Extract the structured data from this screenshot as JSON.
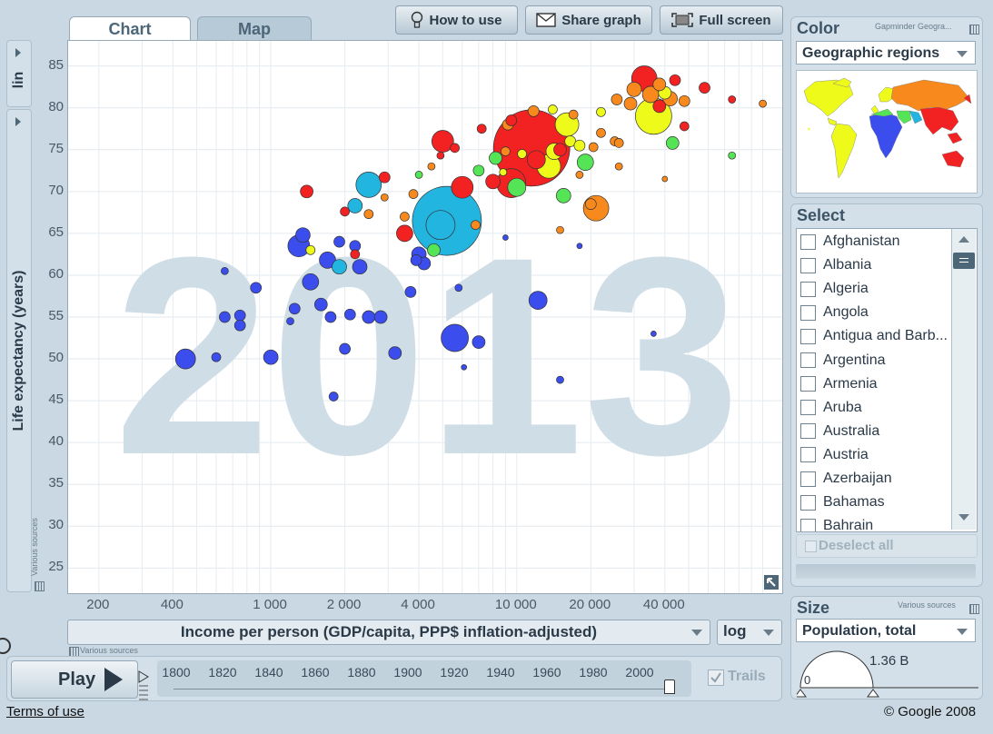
{
  "tabs": {
    "chart": "Chart",
    "map": "Map"
  },
  "toolbar": {
    "how_to_use": "How to use",
    "share_graph": "Share graph",
    "full_screen": "Full screen"
  },
  "y_axis": {
    "label": "Life expectancy (years)",
    "scale": "lin",
    "ticks": [
      "85",
      "80",
      "75",
      "70",
      "65",
      "60",
      "55",
      "50",
      "45",
      "40",
      "35",
      "30",
      "25"
    ],
    "sources": "Various sources"
  },
  "x_axis": {
    "label": "Income per person (GDP/capita, PPP$ inflation-adjusted)",
    "scale": "log",
    "ticks": [
      "200",
      "400",
      "1 000",
      "2 000",
      "4 000",
      "10 000",
      "20 000",
      "40 000"
    ],
    "sources": "Various sources"
  },
  "year_watermark": "2013",
  "color_panel": {
    "title": "Color",
    "source": "Gapminder Geogra...",
    "selected": "Geographic regions"
  },
  "select_panel": {
    "title": "Select",
    "countries": [
      "Afghanistan",
      "Albania",
      "Algeria",
      "Angola",
      "Antigua and Barb...",
      "Argentina",
      "Armenia",
      "Aruba",
      "Australia",
      "Austria",
      "Azerbaijan",
      "Bahamas",
      "Bahrain"
    ],
    "deselect_all": "Deselect all"
  },
  "size_panel": {
    "title": "Size",
    "source": "Various sources",
    "selected": "Population, total",
    "max_label": "1.36 B",
    "min_label": "0"
  },
  "playback": {
    "play": "Play",
    "years": [
      "1800",
      "1820",
      "1840",
      "1860",
      "1880",
      "1900",
      "1920",
      "1940",
      "1960",
      "1980",
      "2000"
    ],
    "trails": "Trails",
    "trails_checked": true,
    "current_year": 2013
  },
  "footer": {
    "terms": "Terms of use",
    "copyright": "© Google 2008"
  },
  "colors": {
    "red": "#f22222",
    "blue": "#3c4dee",
    "cyan": "#22b5e0",
    "yellow": "#eefb1a",
    "orange": "#f8891c",
    "green": "#55e455"
  },
  "chart_data": {
    "type": "scatter",
    "title": "",
    "xlabel": "Income per person (GDP/capita, PPP$ inflation-adjusted)",
    "ylabel": "Life expectancy (years)",
    "xscale": "log",
    "xlim": [
      150,
      120000
    ],
    "ylim": [
      22,
      88
    ],
    "points": [
      {
        "x": 5200,
        "y": 66.5,
        "r": 38,
        "c": "cyan"
      },
      {
        "x": 11500,
        "y": 75.2,
        "r": 42,
        "c": "red"
      },
      {
        "x": 4900,
        "y": 66,
        "r": 16,
        "c": "cyan"
      },
      {
        "x": 2500,
        "y": 70.8,
        "r": 14,
        "c": "cyan"
      },
      {
        "x": 5000,
        "y": 76,
        "r": 12,
        "c": "red"
      },
      {
        "x": 6000,
        "y": 70.5,
        "r": 12,
        "c": "red"
      },
      {
        "x": 9500,
        "y": 71,
        "r": 16,
        "c": "red"
      },
      {
        "x": 13500,
        "y": 73,
        "r": 13,
        "c": "yellow"
      },
      {
        "x": 16000,
        "y": 78,
        "r": 13,
        "c": "yellow"
      },
      {
        "x": 36000,
        "y": 79,
        "r": 20,
        "c": "yellow"
      },
      {
        "x": 33000,
        "y": 83.5,
        "r": 14,
        "c": "red"
      },
      {
        "x": 21000,
        "y": 68,
        "r": 14,
        "c": "orange"
      },
      {
        "x": 1300,
        "y": 63.5,
        "r": 12,
        "c": "blue"
      },
      {
        "x": 5600,
        "y": 52.5,
        "r": 15,
        "c": "blue"
      },
      {
        "x": 12200,
        "y": 57,
        "r": 10,
        "c": "blue"
      },
      {
        "x": 450,
        "y": 50,
        "r": 11,
        "c": "blue"
      },
      {
        "x": 1000,
        "y": 50.2,
        "r": 8,
        "c": "blue"
      },
      {
        "x": 1800,
        "y": 45.5,
        "r": 5,
        "c": "blue"
      },
      {
        "x": 2300,
        "y": 61,
        "r": 8,
        "c": "blue"
      },
      {
        "x": 2500,
        "y": 55,
        "r": 7,
        "c": "blue"
      },
      {
        "x": 1450,
        "y": 59.2,
        "r": 9,
        "c": "blue"
      },
      {
        "x": 1700,
        "y": 61.8,
        "r": 9,
        "c": "blue"
      },
      {
        "x": 3700,
        "y": 58,
        "r": 6,
        "c": "blue"
      },
      {
        "x": 750,
        "y": 55.2,
        "r": 6,
        "c": "blue"
      },
      {
        "x": 650,
        "y": 55,
        "r": 6,
        "c": "blue"
      },
      {
        "x": 750,
        "y": 54,
        "r": 6,
        "c": "blue"
      },
      {
        "x": 870,
        "y": 58.5,
        "r": 6,
        "c": "blue"
      },
      {
        "x": 1250,
        "y": 56,
        "r": 6,
        "c": "blue"
      },
      {
        "x": 1750,
        "y": 55,
        "r": 6,
        "c": "blue"
      },
      {
        "x": 2800,
        "y": 55,
        "r": 7,
        "c": "blue"
      },
      {
        "x": 2000,
        "y": 51.2,
        "r": 6,
        "c": "blue"
      },
      {
        "x": 3200,
        "y": 50.7,
        "r": 7,
        "c": "blue"
      },
      {
        "x": 4000,
        "y": 62.5,
        "r": 8,
        "c": "blue"
      },
      {
        "x": 3900,
        "y": 61.8,
        "r": 6,
        "c": "blue"
      },
      {
        "x": 7000,
        "y": 52,
        "r": 7,
        "c": "blue"
      },
      {
        "x": 600,
        "y": 50.2,
        "r": 5,
        "c": "blue"
      },
      {
        "x": 1200,
        "y": 54.5,
        "r": 4,
        "c": "blue"
      },
      {
        "x": 2100,
        "y": 55.3,
        "r": 6,
        "c": "blue"
      },
      {
        "x": 2200,
        "y": 63.5,
        "r": 6,
        "c": "blue"
      },
      {
        "x": 1350,
        "y": 64.8,
        "r": 8,
        "c": "blue"
      },
      {
        "x": 1600,
        "y": 56.5,
        "r": 7,
        "c": "blue"
      },
      {
        "x": 4200,
        "y": 61.4,
        "r": 7,
        "c": "blue"
      },
      {
        "x": 1900,
        "y": 64,
        "r": 6,
        "c": "blue"
      },
      {
        "x": 650,
        "y": 60.5,
        "r": 4,
        "c": "blue"
      },
      {
        "x": 5800,
        "y": 58.5,
        "r": 4,
        "c": "blue"
      },
      {
        "x": 15000,
        "y": 47.5,
        "r": 4,
        "c": "blue"
      },
      {
        "x": 6100,
        "y": 49,
        "r": 3,
        "c": "blue"
      },
      {
        "x": 36000,
        "y": 53,
        "r": 3,
        "c": "blue"
      },
      {
        "x": 9000,
        "y": 64.5,
        "r": 3,
        "c": "blue"
      },
      {
        "x": 18000,
        "y": 63.5,
        "r": 3,
        "c": "blue"
      },
      {
        "x": 1900,
        "y": 61,
        "r": 8,
        "c": "cyan"
      },
      {
        "x": 2200,
        "y": 68.3,
        "r": 8,
        "c": "cyan"
      },
      {
        "x": 4600,
        "y": 63,
        "r": 7,
        "c": "green"
      },
      {
        "x": 10000,
        "y": 70.5,
        "r": 10,
        "c": "green"
      },
      {
        "x": 15500,
        "y": 69.5,
        "r": 8,
        "c": "green"
      },
      {
        "x": 19000,
        "y": 73.5,
        "r": 9,
        "c": "green"
      },
      {
        "x": 8200,
        "y": 74,
        "r": 7,
        "c": "green"
      },
      {
        "x": 7000,
        "y": 72.5,
        "r": 6,
        "c": "green"
      },
      {
        "x": 43000,
        "y": 75.8,
        "r": 7,
        "c": "green"
      },
      {
        "x": 75000,
        "y": 74.3,
        "r": 4,
        "c": "green"
      },
      {
        "x": 4000,
        "y": 72,
        "r": 4,
        "c": "green"
      },
      {
        "x": 16500,
        "y": 76,
        "r": 6,
        "c": "yellow"
      },
      {
        "x": 14200,
        "y": 74.8,
        "r": 9,
        "c": "yellow"
      },
      {
        "x": 18000,
        "y": 75.5,
        "r": 6,
        "c": "yellow"
      },
      {
        "x": 22000,
        "y": 79.5,
        "r": 5,
        "c": "yellow"
      },
      {
        "x": 40000,
        "y": 81.8,
        "r": 7,
        "c": "yellow"
      },
      {
        "x": 1450,
        "y": 63,
        "r": 5,
        "c": "yellow"
      },
      {
        "x": 14000,
        "y": 79.8,
        "r": 5,
        "c": "yellow"
      },
      {
        "x": 10500,
        "y": 74.5,
        "r": 5,
        "c": "yellow"
      },
      {
        "x": 8800,
        "y": 72.3,
        "r": 4,
        "c": "yellow"
      },
      {
        "x": 20500,
        "y": 75.3,
        "r": 5,
        "c": "orange"
      },
      {
        "x": 22000,
        "y": 77,
        "r": 5,
        "c": "orange"
      },
      {
        "x": 25000,
        "y": 76,
        "r": 5,
        "c": "orange"
      },
      {
        "x": 20000,
        "y": 68.5,
        "r": 6,
        "c": "orange"
      },
      {
        "x": 25500,
        "y": 81,
        "r": 6,
        "c": "orange"
      },
      {
        "x": 29000,
        "y": 80.5,
        "r": 7,
        "c": "orange"
      },
      {
        "x": 30000,
        "y": 82.2,
        "r": 8,
        "c": "orange"
      },
      {
        "x": 35000,
        "y": 81.6,
        "r": 9,
        "c": "orange"
      },
      {
        "x": 38000,
        "y": 82.8,
        "r": 7,
        "c": "orange"
      },
      {
        "x": 42000,
        "y": 81.1,
        "r": 8,
        "c": "orange"
      },
      {
        "x": 48000,
        "y": 80.8,
        "r": 6,
        "c": "orange"
      },
      {
        "x": 15000,
        "y": 65.4,
        "r": 4,
        "c": "orange"
      },
      {
        "x": 18000,
        "y": 72,
        "r": 4,
        "c": "orange"
      },
      {
        "x": 3800,
        "y": 69.7,
        "r": 5,
        "c": "orange"
      },
      {
        "x": 3500,
        "y": 67,
        "r": 5,
        "c": "orange"
      },
      {
        "x": 2500,
        "y": 67.3,
        "r": 5,
        "c": "orange"
      },
      {
        "x": 2900,
        "y": 69.3,
        "r": 4,
        "c": "orange"
      },
      {
        "x": 11700,
        "y": 79.6,
        "r": 6,
        "c": "orange"
      },
      {
        "x": 17000,
        "y": 79.2,
        "r": 5,
        "c": "orange"
      },
      {
        "x": 100000,
        "y": 80.5,
        "r": 4,
        "c": "orange"
      },
      {
        "x": 40000,
        "y": 71.5,
        "r": 3,
        "c": "orange"
      },
      {
        "x": 9200,
        "y": 78,
        "r": 6,
        "c": "orange"
      },
      {
        "x": 6800,
        "y": 66,
        "r": 5,
        "c": "orange"
      },
      {
        "x": 9000,
        "y": 74.8,
        "r": 5,
        "c": "orange"
      },
      {
        "x": 26000,
        "y": 75.8,
        "r": 5,
        "c": "orange"
      },
      {
        "x": 26000,
        "y": 73,
        "r": 4,
        "c": "orange"
      },
      {
        "x": 4500,
        "y": 73,
        "r": 4,
        "c": "orange"
      },
      {
        "x": 1400,
        "y": 70,
        "r": 7,
        "c": "red"
      },
      {
        "x": 2900,
        "y": 71.7,
        "r": 6,
        "c": "red"
      },
      {
        "x": 3500,
        "y": 65,
        "r": 9,
        "c": "red"
      },
      {
        "x": 8000,
        "y": 71.2,
        "r": 8,
        "c": "red"
      },
      {
        "x": 12000,
        "y": 73.8,
        "r": 10,
        "c": "red"
      },
      {
        "x": 15000,
        "y": 75,
        "r": 7,
        "c": "red"
      },
      {
        "x": 2200,
        "y": 62.5,
        "r": 5,
        "c": "red"
      },
      {
        "x": 2000,
        "y": 67.6,
        "r": 5,
        "c": "red"
      },
      {
        "x": 9500,
        "y": 78.5,
        "r": 6,
        "c": "red"
      },
      {
        "x": 44000,
        "y": 83.3,
        "r": 6,
        "c": "red"
      },
      {
        "x": 58000,
        "y": 82.4,
        "r": 6,
        "c": "red"
      },
      {
        "x": 38000,
        "y": 80.2,
        "r": 7,
        "c": "red"
      },
      {
        "x": 5600,
        "y": 75.2,
        "r": 5,
        "c": "red"
      },
      {
        "x": 48000,
        "y": 77.8,
        "r": 5,
        "c": "red"
      },
      {
        "x": 75000,
        "y": 81,
        "r": 4,
        "c": "red"
      },
      {
        "x": 7200,
        "y": 77.5,
        "r": 5,
        "c": "red"
      },
      {
        "x": 4900,
        "y": 74.3,
        "r": 4,
        "c": "red"
      }
    ]
  }
}
